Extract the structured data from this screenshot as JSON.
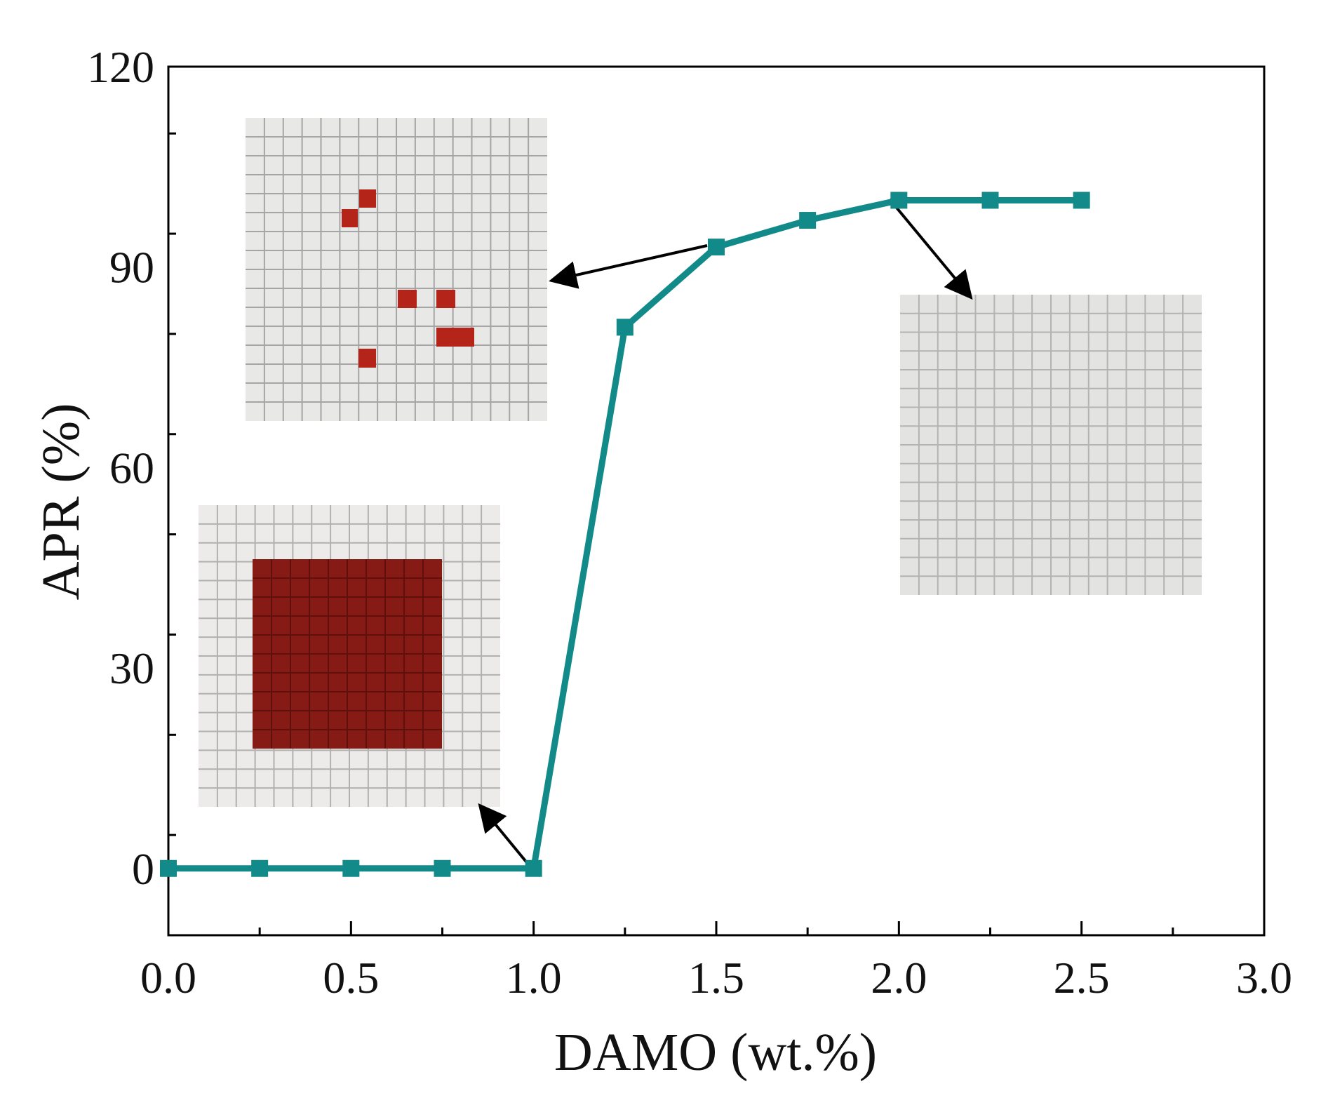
{
  "chart_data": {
    "type": "line",
    "title": "",
    "xlabel": "DAMO (wt.%)",
    "ylabel": "APR (%)",
    "xlim": [
      0,
      3.0
    ],
    "ylim": [
      -10,
      120
    ],
    "xticks": [
      0.0,
      0.5,
      1.0,
      1.5,
      2.0,
      2.5,
      3.0
    ],
    "xtick_labels": [
      "0.0",
      "0.5",
      "1.0",
      "1.5",
      "2.0",
      "2.5",
      "3.0"
    ],
    "yticks": [
      0,
      30,
      60,
      90,
      120
    ],
    "ytick_labels": [
      "0",
      "30",
      "60",
      "90",
      "120"
    ],
    "grid": false,
    "series": [
      {
        "name": "APR",
        "color": "#138a8a",
        "marker": "square",
        "x": [
          0.0,
          0.25,
          0.5,
          0.75,
          1.0,
          1.25,
          1.5,
          1.75,
          2.0,
          2.25,
          2.5
        ],
        "y": [
          0,
          0,
          0,
          0,
          0,
          81,
          93,
          97,
          100,
          100,
          100
        ]
      }
    ],
    "insets": [
      {
        "name": "sample-photo-1wt",
        "description": "mostly peeled crosshatch",
        "points_to": {
          "x": 1.0,
          "y": 0
        }
      },
      {
        "name": "sample-photo-1.5wt",
        "description": "few peeled squares",
        "points_to": {
          "x": 1.5,
          "y": 93
        }
      },
      {
        "name": "sample-photo-2wt",
        "description": "intact crosshatch",
        "points_to": {
          "x": 2.0,
          "y": 100
        }
      }
    ],
    "colors": {
      "line": "#138a8a",
      "peel": "#b52418",
      "peel_dark": "#7f1a14",
      "coating": "#e9e9e7"
    }
  }
}
